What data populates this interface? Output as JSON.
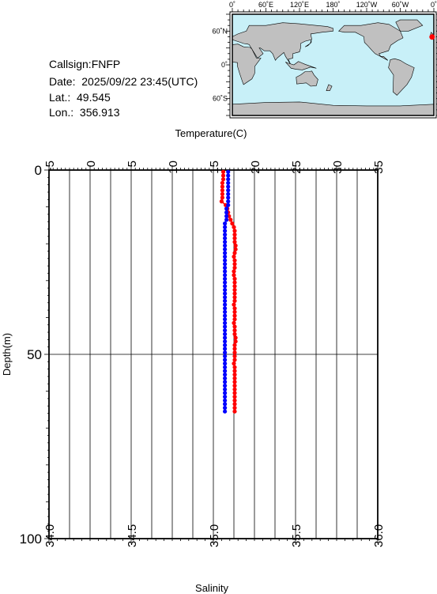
{
  "info": {
    "callsign": "Callsign:FNFP",
    "date": "Date:  2025/09/22 23:45(UTC)",
    "lat": "Lat.:  49.545",
    "lon": "Lon.:  356.913"
  },
  "map": {
    "lon_ticks": [
      "0˚",
      "60˚E",
      "120˚E",
      "180˚",
      "120˚W",
      "60˚W",
      "0˚"
    ],
    "lat_ticks": [
      "60˚N",
      "0˚",
      "60˚S"
    ],
    "ocean_color": "#c8f0f8",
    "land_color": "#c0c0c0",
    "station_marker_color": "#ff0000",
    "station_lon": 356.913,
    "station_lat": 49.545
  },
  "chart_data": {
    "type": "line",
    "title": "",
    "x_top_label": "Temperature(C)",
    "x_bottom_label": "Salinity",
    "ylabel": "Depth(m)",
    "temperature_ticks": [
      "-5",
      "0",
      "5",
      "10",
      "15",
      "20",
      "25",
      "30",
      "35"
    ],
    "temperature_lim": [
      -5,
      35
    ],
    "salinity_ticks": [
      "34.0",
      "34.5",
      "35.0",
      "35.5",
      "36.0"
    ],
    "salinity_lim": [
      34.0,
      36.0
    ],
    "depth_ticks": [
      "0",
      "50",
      "100"
    ],
    "depth_lim": [
      0,
      100
    ],
    "grid": true,
    "series": [
      {
        "name": "",
        "axis": "temperature",
        "color": "#ff0000",
        "points": [
          [
            16.2,
            0.5
          ],
          [
            16.2,
            1.5
          ],
          [
            16.2,
            2.5
          ],
          [
            16.1,
            3.5
          ],
          [
            16.1,
            4.5
          ],
          [
            16.1,
            5.5
          ],
          [
            16.1,
            6.5
          ],
          [
            16.1,
            7.5
          ],
          [
            16.0,
            8.5
          ],
          [
            16.5,
            9.5
          ],
          [
            16.7,
            10.5
          ],
          [
            16.8,
            11.5
          ],
          [
            16.9,
            12.5
          ],
          [
            17.1,
            13.5
          ],
          [
            17.3,
            14.5
          ],
          [
            17.5,
            15.5
          ],
          [
            17.6,
            16.5
          ],
          [
            17.6,
            17.5
          ],
          [
            17.6,
            18.5
          ],
          [
            17.6,
            19.5
          ],
          [
            17.7,
            20.5
          ],
          [
            17.7,
            21.5
          ],
          [
            17.6,
            22.5
          ],
          [
            17.5,
            23.5
          ],
          [
            17.6,
            24.5
          ],
          [
            17.6,
            25.5
          ],
          [
            17.6,
            26.5
          ],
          [
            17.5,
            27.5
          ],
          [
            17.5,
            28.5
          ],
          [
            17.6,
            29.5
          ],
          [
            17.6,
            30.5
          ],
          [
            17.6,
            31.5
          ],
          [
            17.6,
            32.5
          ],
          [
            17.6,
            33.5
          ],
          [
            17.6,
            34.5
          ],
          [
            17.6,
            35.5
          ],
          [
            17.5,
            36.5
          ],
          [
            17.6,
            37.5
          ],
          [
            17.6,
            38.5
          ],
          [
            17.6,
            39.5
          ],
          [
            17.6,
            40.5
          ],
          [
            17.5,
            41.5
          ],
          [
            17.6,
            42.5
          ],
          [
            17.6,
            43.5
          ],
          [
            17.6,
            44.5
          ],
          [
            17.7,
            45.5
          ],
          [
            17.7,
            46.5
          ],
          [
            17.6,
            47.5
          ],
          [
            17.6,
            48.5
          ],
          [
            17.6,
            49.5
          ],
          [
            17.6,
            50.5
          ],
          [
            17.6,
            51.5
          ],
          [
            17.5,
            52.5
          ],
          [
            17.6,
            53.5
          ],
          [
            17.6,
            54.5
          ],
          [
            17.6,
            55.5
          ],
          [
            17.6,
            56.5
          ],
          [
            17.6,
            57.5
          ],
          [
            17.6,
            58.5
          ],
          [
            17.6,
            59.5
          ],
          [
            17.6,
            60.5
          ],
          [
            17.6,
            61.5
          ],
          [
            17.6,
            62.5
          ],
          [
            17.6,
            63.5
          ],
          [
            17.6,
            64.5
          ],
          [
            17.6,
            65.5
          ]
        ]
      },
      {
        "name": "",
        "axis": "salinity",
        "color": "#0000ff",
        "points": [
          [
            35.09,
            0.5
          ],
          [
            35.09,
            1.5
          ],
          [
            35.09,
            2.5
          ],
          [
            35.09,
            3.5
          ],
          [
            35.09,
            4.5
          ],
          [
            35.09,
            5.5
          ],
          [
            35.09,
            6.5
          ],
          [
            35.09,
            7.5
          ],
          [
            35.09,
            8.5
          ],
          [
            35.09,
            9.5
          ],
          [
            35.08,
            10.5
          ],
          [
            35.08,
            11.5
          ],
          [
            35.08,
            12.5
          ],
          [
            35.08,
            13.5
          ],
          [
            35.07,
            14.5
          ],
          [
            35.07,
            15.5
          ],
          [
            35.07,
            16.5
          ],
          [
            35.07,
            17.5
          ],
          [
            35.07,
            18.5
          ],
          [
            35.07,
            19.5
          ],
          [
            35.07,
            20.5
          ],
          [
            35.07,
            21.5
          ],
          [
            35.07,
            22.5
          ],
          [
            35.07,
            23.5
          ],
          [
            35.07,
            24.5
          ],
          [
            35.07,
            25.5
          ],
          [
            35.07,
            26.5
          ],
          [
            35.07,
            27.5
          ],
          [
            35.07,
            28.5
          ],
          [
            35.07,
            29.5
          ],
          [
            35.07,
            30.5
          ],
          [
            35.07,
            31.5
          ],
          [
            35.07,
            32.5
          ],
          [
            35.07,
            33.5
          ],
          [
            35.07,
            34.5
          ],
          [
            35.07,
            35.5
          ],
          [
            35.07,
            36.5
          ],
          [
            35.07,
            37.5
          ],
          [
            35.07,
            38.5
          ],
          [
            35.07,
            39.5
          ],
          [
            35.07,
            40.5
          ],
          [
            35.07,
            41.5
          ],
          [
            35.07,
            42.5
          ],
          [
            35.07,
            43.5
          ],
          [
            35.07,
            44.5
          ],
          [
            35.07,
            45.5
          ],
          [
            35.07,
            46.5
          ],
          [
            35.07,
            47.5
          ],
          [
            35.07,
            48.5
          ],
          [
            35.07,
            49.5
          ],
          [
            35.07,
            50.5
          ],
          [
            35.07,
            51.5
          ],
          [
            35.07,
            52.5
          ],
          [
            35.07,
            53.5
          ],
          [
            35.07,
            54.5
          ],
          [
            35.07,
            55.5
          ],
          [
            35.07,
            56.5
          ],
          [
            35.07,
            57.5
          ],
          [
            35.07,
            58.5
          ],
          [
            35.07,
            59.5
          ],
          [
            35.07,
            60.5
          ],
          [
            35.07,
            61.5
          ],
          [
            35.07,
            62.5
          ],
          [
            35.07,
            63.5
          ],
          [
            35.07,
            64.5
          ],
          [
            35.07,
            65.5
          ]
        ]
      }
    ]
  }
}
